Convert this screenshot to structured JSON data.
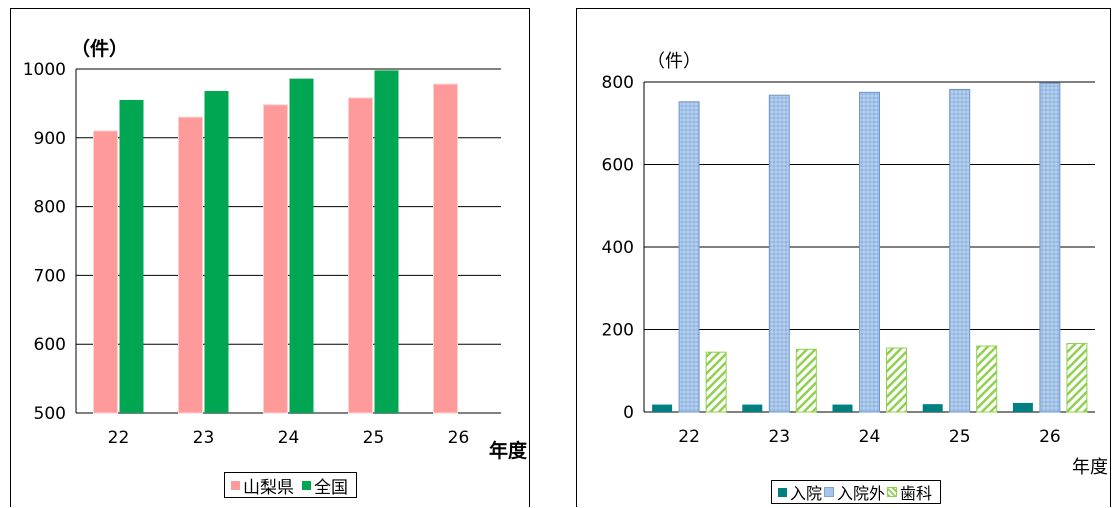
{
  "charts": [
    {
      "unit_label": "（件）",
      "x_label": "年度",
      "legend": [
        "山梨県",
        "全国"
      ],
      "colors": {
        "山梨県": "#ff9a9a",
        "全国": "#00a651"
      }
    },
    {
      "unit_label": "（件）",
      "x_label": "年度",
      "legend": [
        "入院",
        "入院外",
        "歯科"
      ],
      "colors": {
        "入院": "#008080",
        "入院外": "#a6c4e8",
        "歯科": "#8fd14f"
      }
    }
  ],
  "chart_data": [
    {
      "type": "bar",
      "categories": [
        "22",
        "23",
        "24",
        "25",
        "26"
      ],
      "series": [
        {
          "name": "山梨県",
          "values": [
            910,
            930,
            948,
            958,
            978
          ]
        },
        {
          "name": "全国",
          "values": [
            955,
            968,
            986,
            998,
            null
          ]
        }
      ],
      "ylim": [
        500,
        1000
      ],
      "yticks": [
        500,
        600,
        700,
        800,
        900,
        1000
      ],
      "grid": true,
      "legend_position": "bottom"
    },
    {
      "type": "bar",
      "categories": [
        "22",
        "23",
        "24",
        "25",
        "26"
      ],
      "series": [
        {
          "name": "入院",
          "values": [
            18,
            18,
            18,
            19,
            22
          ]
        },
        {
          "name": "入院外",
          "values": [
            752,
            768,
            775,
            782,
            797
          ]
        },
        {
          "name": "歯科",
          "values": [
            145,
            152,
            155,
            160,
            166
          ]
        }
      ],
      "ylim": [
        0,
        800
      ],
      "yticks": [
        0,
        200,
        400,
        600,
        800
      ],
      "grid": true,
      "legend_position": "bottom"
    }
  ]
}
